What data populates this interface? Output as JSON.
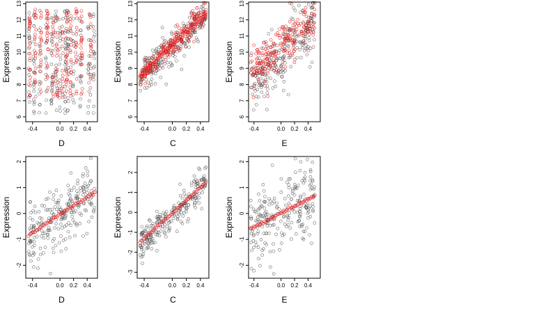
{
  "chart_data": [
    {
      "type": "scatter",
      "xlabel": "D",
      "ylabel": "Expression",
      "xlim": [
        -0.5,
        0.55
      ],
      "ylim": [
        5.7,
        13.1
      ],
      "xticks": [
        -0.4,
        0.0,
        0.2,
        0.4
      ],
      "xtick_labels": [
        "-0.4",
        "0.0",
        "0.2",
        "0.4"
      ],
      "yticks": [
        6,
        7,
        8,
        9,
        10,
        11,
        12,
        13
      ],
      "ytick_labels": [
        "6",
        "7",
        "8",
        "9",
        "10",
        "11",
        "12",
        "13"
      ],
      "series": [
        {
          "color": "#444444",
          "x_columns": [
            -0.45,
            -0.38,
            -0.3,
            -0.2,
            -0.12,
            -0.06,
            0.0,
            0.08,
            0.12,
            0.2,
            0.3,
            0.42,
            0.5
          ],
          "y_range": [
            6.2,
            12.6
          ]
        },
        {
          "color": "#e41a1c",
          "x_columns": [
            -0.44,
            -0.36,
            -0.28,
            -0.18,
            -0.1,
            -0.04,
            0.04,
            0.1,
            0.16,
            0.24,
            0.32,
            0.45
          ],
          "y_range": [
            7.2,
            12.7
          ]
        }
      ]
    },
    {
      "type": "scatter",
      "xlabel": "C",
      "ylabel": "Expression",
      "xlim": [
        -0.5,
        0.52
      ],
      "ylim": [
        5.7,
        13.1
      ],
      "xticks": [
        -0.4,
        0.0,
        0.2,
        0.4
      ],
      "xtick_labels": [
        "-0.4",
        "0.0",
        "0.2",
        "0.4"
      ],
      "yticks": [
        6,
        7,
        8,
        9,
        10,
        11,
        12,
        13
      ],
      "ytick_labels": [
        "6",
        "7",
        "8",
        "9",
        "10",
        "11",
        "12",
        "13"
      ],
      "fit_line": {
        "x": [
          -0.46,
          0.48
        ],
        "y": [
          8.5,
          12.5
        ]
      },
      "series": [
        {
          "color": "#444444",
          "trend": {
            "x": [
              -0.46,
              0.48
            ],
            "y": [
              8.4,
              12.2
            ]
          },
          "spread": 1.4
        },
        {
          "color": "#e41a1c",
          "trend": {
            "x": [
              -0.46,
              0.48
            ],
            "y": [
              8.5,
              12.4
            ]
          },
          "spread": 0.9
        }
      ]
    },
    {
      "type": "scatter",
      "xlabel": "E",
      "ylabel": "Expression",
      "xlim": [
        -0.48,
        0.58
      ],
      "ylim": [
        5.7,
        13.1
      ],
      "xticks": [
        -0.4,
        0.0,
        0.2,
        0.4
      ],
      "xtick_labels": [
        "-0.4",
        "0.0",
        "0.2",
        "0.4"
      ],
      "yticks": [
        6,
        7,
        8,
        9,
        10,
        11,
        12,
        13
      ],
      "ytick_labels": [
        "6",
        "7",
        "8",
        "9",
        "10",
        "11",
        "12",
        "13"
      ],
      "series": [
        {
          "color": "#444444",
          "trend": {
            "x": [
              -0.45,
              0.5
            ],
            "y": [
              8.0,
              12.0
            ]
          },
          "spread": 2.2
        },
        {
          "color": "#e41a1c",
          "trend": {
            "x": [
              -0.45,
              0.5
            ],
            "y": [
              8.6,
              12.3
            ]
          },
          "spread": 1.8
        }
      ]
    },
    {
      "type": "scatter",
      "xlabel": "D",
      "ylabel": "Expression",
      "xlim": [
        -0.5,
        0.55
      ],
      "ylim": [
        -2.5,
        2.2
      ],
      "xticks": [
        -0.4,
        0.0,
        0.2,
        0.4
      ],
      "xtick_labels": [
        "-0.4",
        "0.0",
        "0.2",
        "0.4"
      ],
      "yticks": [
        -2,
        -1,
        0,
        1,
        2
      ],
      "ytick_labels": [
        "-2",
        "-1",
        "0",
        "1",
        "2"
      ],
      "fit_line": {
        "x": [
          -0.46,
          0.52
        ],
        "y": [
          -0.85,
          0.85
        ]
      },
      "series": [
        {
          "color": "#444444",
          "trend": {
            "x": [
              -0.46,
              0.52
            ],
            "y": [
              -0.8,
              0.7
            ]
          },
          "spread": 1.6
        }
      ]
    },
    {
      "type": "scatter",
      "xlabel": "C",
      "ylabel": "Expression",
      "xlim": [
        -0.5,
        0.52
      ],
      "ylim": [
        -3.3,
        2.8
      ],
      "xticks": [
        -0.4,
        0.0,
        0.2,
        0.4
      ],
      "xtick_labels": [
        "-0.4",
        "0.0",
        "0.2",
        "0.4"
      ],
      "yticks": [
        -3,
        -2,
        -1,
        0,
        1,
        2
      ],
      "ytick_labels": [
        "-3",
        "-2",
        "-1",
        "0",
        "1",
        "2"
      ],
      "fit_line": {
        "x": [
          -0.46,
          0.48
        ],
        "y": [
          -1.5,
          1.5
        ]
      },
      "series": [
        {
          "color": "#444444",
          "trend": {
            "x": [
              -0.46,
              0.48
            ],
            "y": [
              -1.6,
              1.4
            ]
          },
          "spread": 1.1
        }
      ]
    },
    {
      "type": "scatter",
      "xlabel": "E",
      "ylabel": "Expression",
      "xlim": [
        -0.48,
        0.58
      ],
      "ylim": [
        -2.5,
        2.2
      ],
      "xticks": [
        -0.4,
        0.0,
        0.2,
        0.4
      ],
      "xtick_labels": [
        "-0.4",
        "0.0",
        "0.2",
        "0.4"
      ],
      "yticks": [
        -2,
        -1,
        0,
        1,
        2
      ],
      "ytick_labels": [
        "-2",
        "-1",
        "0",
        "1",
        "2"
      ],
      "fit_line": {
        "x": [
          -0.45,
          0.5
        ],
        "y": [
          -0.6,
          0.7
        ]
      },
      "series": [
        {
          "color": "#444444",
          "trend": {
            "x": [
              -0.45,
              0.5
            ],
            "y": [
              -0.6,
              0.6
            ]
          },
          "spread": 1.8
        }
      ]
    }
  ]
}
